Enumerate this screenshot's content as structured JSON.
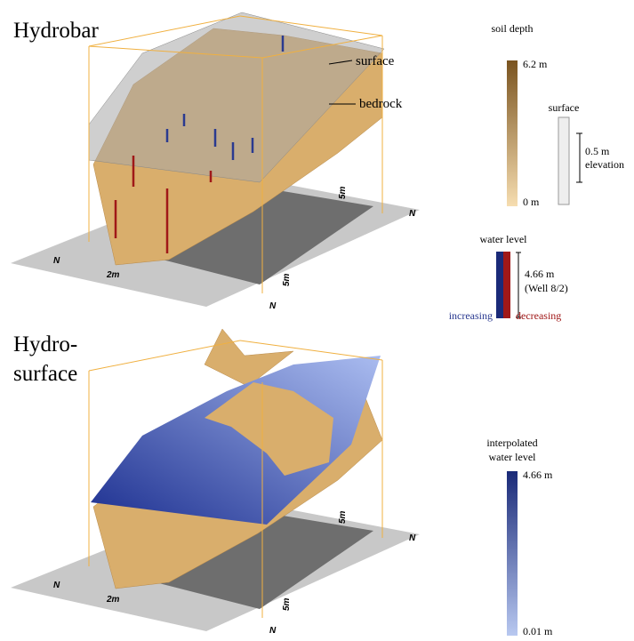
{
  "panels": [
    {
      "title": [
        "Hydrobar"
      ],
      "annotations": [
        "surface",
        "bedrock"
      ],
      "north_labels": [
        "N",
        "N",
        "N"
      ],
      "scale_labels": [
        "2m",
        "5m",
        "5m"
      ]
    },
    {
      "title": [
        "Hydro-",
        "surface"
      ],
      "north_labels": [
        "N",
        "N",
        "N"
      ],
      "scale_labels": [
        "2m",
        "5m",
        "5m"
      ]
    }
  ],
  "legends": {
    "soil_depth": {
      "title": "soil depth",
      "max": "6.2 m",
      "min": "0 m"
    },
    "surface": {
      "title": "surface",
      "step": "0.5 m",
      "step_note": "elevation"
    },
    "water_level": {
      "title": "water level",
      "range": "4.66 m",
      "well": "(Well 8/2)",
      "increasing": "increasing",
      "decreasing": "decreasing"
    },
    "interpolated": {
      "title": [
        "interpolated",
        "water level"
      ],
      "max": "4.66 m",
      "min": "0.01 m"
    }
  }
}
